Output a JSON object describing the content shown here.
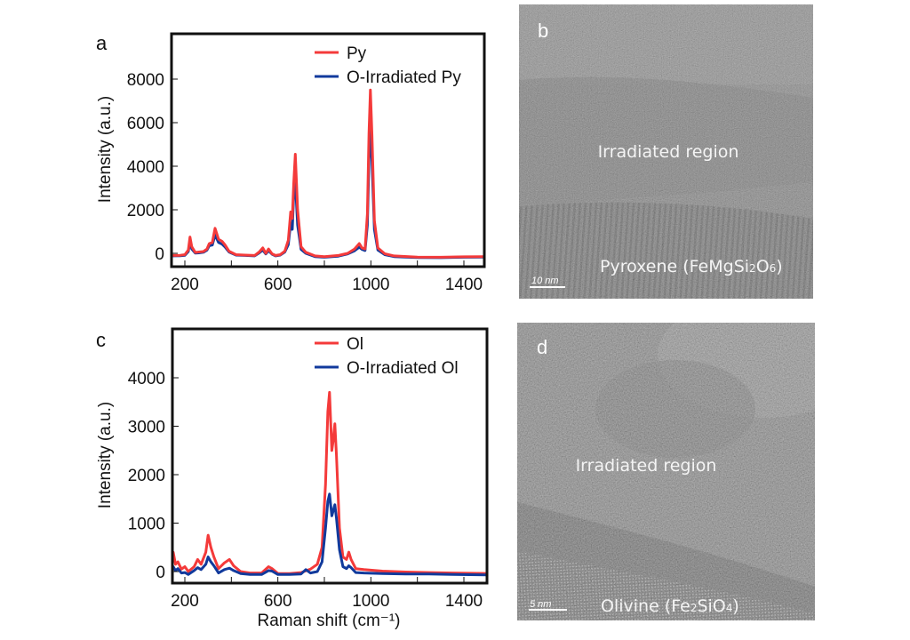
{
  "colors": {
    "pristine": "#f43a3a",
    "irradiated": "#113a9c",
    "axis": "#111111",
    "tem_b_bg": "#6a6a6a",
    "tem_d_bg": "#4a4a4a"
  },
  "chart_data": [
    {
      "panel": "a",
      "type": "line",
      "title": "",
      "xlabel": "",
      "ylabel": "Intensity (a.u.)",
      "xlim": [
        140,
        1500
      ],
      "ylim": [
        -400,
        9800
      ],
      "xticks": [
        200,
        600,
        1000,
        1400
      ],
      "xminor": [
        400,
        800,
        1200
      ],
      "yticks": [
        0,
        2000,
        4000,
        6000,
        8000
      ],
      "legend": {
        "position": "top-right",
        "entries": [
          "Py",
          "O-Irradiated Py"
        ]
      },
      "series": [
        {
          "name": "Py",
          "x": [
            140,
            180,
            200,
            215,
            222,
            230,
            245,
            260,
            280,
            295,
            305,
            318,
            330,
            345,
            360,
            372,
            390,
            420,
            460,
            500,
            520,
            535,
            548,
            560,
            575,
            590,
            610,
            630,
            645,
            655,
            662,
            668,
            675,
            685,
            700,
            720,
            760,
            800,
            860,
            900,
            930,
            950,
            962,
            975,
            985,
            992,
            998,
            1005,
            1015,
            1030,
            1060,
            1100,
            1200,
            1300,
            1400,
            1500
          ],
          "y": [
            -100,
            -90,
            -60,
            150,
            750,
            300,
            40,
            60,
            80,
            200,
            450,
            500,
            1150,
            650,
            550,
            400,
            100,
            -60,
            -80,
            -100,
            60,
            250,
            0,
            200,
            -20,
            -100,
            -60,
            100,
            600,
            1900,
            1600,
            3200,
            4550,
            2000,
            300,
            50,
            -120,
            -150,
            -100,
            0,
            200,
            450,
            250,
            200,
            1800,
            5500,
            7500,
            5400,
            1500,
            250,
            -20,
            -120,
            -170,
            -180,
            -160,
            -150
          ]
        },
        {
          "name": "O-Irradiated Py",
          "x": [
            140,
            180,
            200,
            215,
            222,
            230,
            245,
            260,
            280,
            295,
            305,
            318,
            330,
            345,
            360,
            372,
            390,
            420,
            460,
            500,
            520,
            535,
            548,
            560,
            575,
            590,
            610,
            630,
            645,
            655,
            662,
            668,
            675,
            685,
            700,
            720,
            760,
            800,
            860,
            900,
            930,
            950,
            962,
            975,
            985,
            992,
            998,
            1005,
            1015,
            1030,
            1060,
            1100,
            1200,
            1300,
            1400,
            1500
          ],
          "y": [
            -120,
            -110,
            -90,
            80,
            550,
            200,
            10,
            20,
            50,
            150,
            350,
            380,
            850,
            500,
            420,
            300,
            60,
            -80,
            -100,
            -120,
            20,
            150,
            -30,
            120,
            -40,
            -120,
            -80,
            60,
            400,
            1400,
            1100,
            2700,
            3300,
            1300,
            180,
            0,
            -150,
            -180,
            -130,
            -30,
            120,
            280,
            180,
            130,
            1300,
            4300,
            5900,
            4200,
            1100,
            150,
            -60,
            -150,
            -190,
            -200,
            -180,
            -170
          ]
        }
      ]
    },
    {
      "panel": "c",
      "type": "line",
      "title": "",
      "xlabel": "Raman shift (cm⁻¹)",
      "ylabel": "Intensity (a.u.)",
      "xlim": [
        140,
        1500
      ],
      "ylim": [
        -250,
        5000
      ],
      "xticks": [
        200,
        600,
        1000,
        1400
      ],
      "xminor": [
        400,
        800,
        1200
      ],
      "yticks": [
        0,
        1000,
        2000,
        3000,
        4000
      ],
      "legend": {
        "position": "top-right",
        "entries": [
          "Ol",
          "O-Irradiated Ol"
        ]
      },
      "series": [
        {
          "name": "Ol",
          "x": [
            140,
            150,
            160,
            170,
            185,
            200,
            215,
            240,
            255,
            270,
            290,
            300,
            312,
            325,
            345,
            370,
            392,
            410,
            440,
            480,
            530,
            560,
            575,
            600,
            650,
            700,
            740,
            770,
            790,
            805,
            815,
            822,
            832,
            838,
            845,
            852,
            865,
            880,
            895,
            905,
            915,
            935,
            970,
            1050,
            1150,
            1250,
            1350,
            1500
          ],
          "y": [
            50,
            400,
            150,
            200,
            50,
            100,
            0,
            100,
            250,
            150,
            400,
            750,
            500,
            300,
            60,
            180,
            250,
            120,
            0,
            -30,
            -30,
            100,
            60,
            -40,
            -40,
            -20,
            50,
            150,
            500,
            1800,
            3300,
            3700,
            2500,
            2700,
            3050,
            2400,
            900,
            300,
            250,
            400,
            250,
            60,
            40,
            10,
            -10,
            -20,
            -30,
            -40
          ]
        },
        {
          "name": "O-Irradiated Ol",
          "x": [
            140,
            150,
            160,
            170,
            185,
            200,
            215,
            240,
            255,
            270,
            290,
            300,
            312,
            325,
            345,
            370,
            392,
            410,
            440,
            480,
            530,
            560,
            575,
            600,
            650,
            700,
            720,
            740,
            770,
            790,
            805,
            815,
            822,
            832,
            838,
            845,
            852,
            865,
            880,
            895,
            905,
            915,
            935,
            970,
            1050,
            1150,
            1250,
            1350,
            1500
          ],
          "y": [
            -20,
            100,
            20,
            60,
            -30,
            -20,
            -60,
            20,
            80,
            40,
            150,
            300,
            200,
            120,
            -30,
            40,
            70,
            20,
            -40,
            -60,
            -60,
            20,
            10,
            -60,
            -60,
            -50,
            40,
            -30,
            0,
            200,
            900,
            1450,
            1600,
            1150,
            1250,
            1380,
            1100,
            450,
            100,
            60,
            120,
            80,
            -20,
            -30,
            -40,
            -50,
            -50,
            -60,
            -70
          ]
        }
      ]
    }
  ],
  "panels": {
    "a": {
      "label": "a"
    },
    "c": {
      "label": "c"
    },
    "b": {
      "label": "b",
      "region_text": "Irradiated region",
      "mineral_name": "Pyroxene (FeMgSi",
      "mineral_sub1": "2",
      "mineral_mid": "O",
      "mineral_sub2": "6",
      "mineral_end": ")",
      "scale_bar": "10 nm"
    },
    "d": {
      "label": "d",
      "region_text": "Irradiated region",
      "mineral_name": "Olivine (Fe",
      "mineral_sub1": "2",
      "mineral_mid": "SiO",
      "mineral_sub2": "4",
      "mineral_end": ")",
      "scale_bar": "5 nm"
    }
  }
}
